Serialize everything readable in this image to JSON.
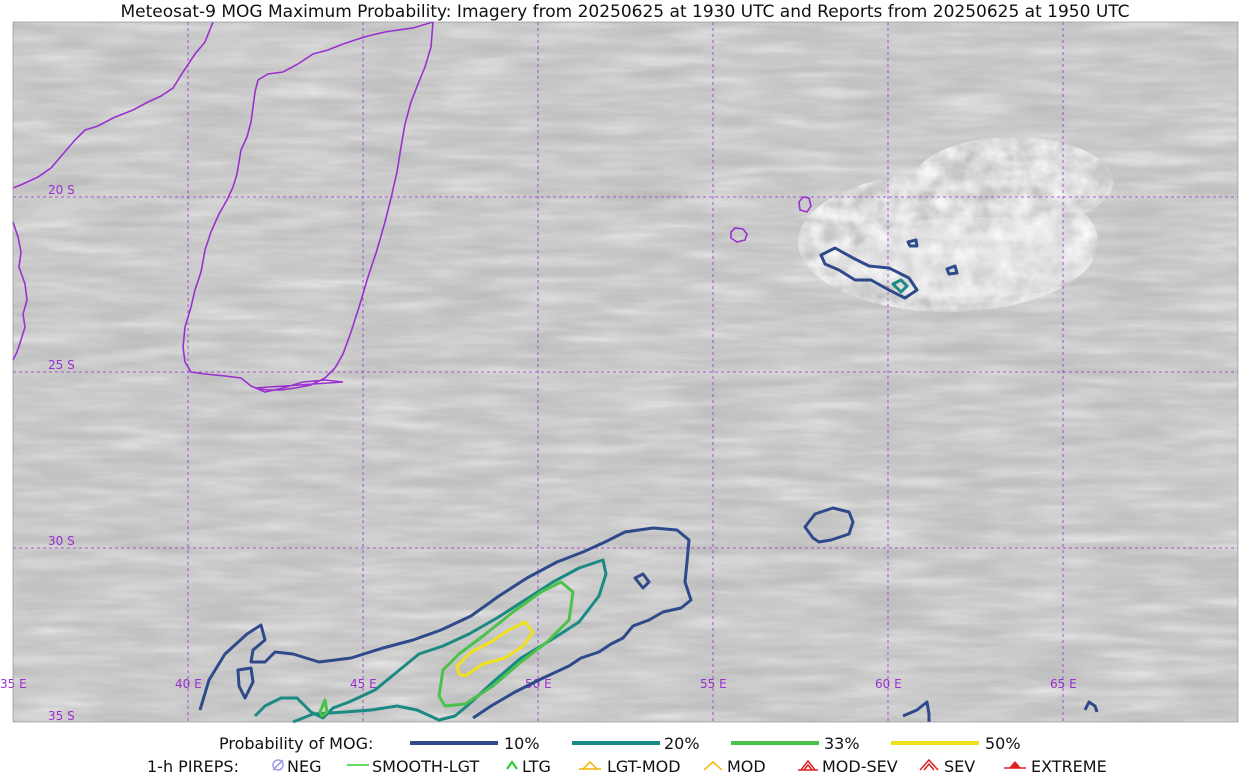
{
  "title": "Meteosat-9 MOG Maximum Probability: Imagery from 20250625 at 1930 UTC and Reports from 20250625 at 1950 UTC",
  "map": {
    "lat_labels": [
      "20 S",
      "25 S",
      "30 S",
      "35 S"
    ],
    "lon_labels": [
      "35 E",
      "40 E",
      "45 E",
      "50 E",
      "55 E",
      "60 E",
      "65 E"
    ],
    "gridline_color": "#9b30d0",
    "coastline_color": "#9b30d0"
  },
  "legend": {
    "probability": {
      "label": "Probability of MOG:",
      "items": [
        {
          "label": "10%",
          "color": "#2e4a8a"
        },
        {
          "label": "20%",
          "color": "#1b8a82"
        },
        {
          "label": "33%",
          "color": "#4cc24c"
        },
        {
          "label": "50%",
          "color": "#f2e01e"
        }
      ]
    },
    "pireps": {
      "label": "1-h PIREPS:",
      "items": [
        {
          "label": "NEG",
          "icon": "neg-icon",
          "color": "#9a9ae6"
        },
        {
          "label": "SMOOTH-LGT",
          "icon": "smooth-lgt-icon",
          "color": "#33cc33"
        },
        {
          "label": "LTG",
          "icon": "ltg-icon",
          "color": "#22cc22"
        },
        {
          "label": "LGT-MOD",
          "icon": "lgt-mod-icon",
          "color": "#f0b400"
        },
        {
          "label": "MOD",
          "icon": "mod-icon",
          "color": "#f0b400"
        },
        {
          "label": "MOD-SEV",
          "icon": "mod-sev-icon",
          "color": "#e02020"
        },
        {
          "label": "SEV",
          "icon": "sev-icon",
          "color": "#e02020"
        },
        {
          "label": "EXTREME",
          "icon": "extreme-icon",
          "color": "#e02020"
        }
      ]
    }
  }
}
